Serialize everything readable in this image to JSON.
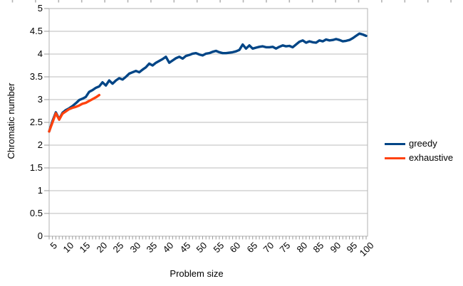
{
  "chart_data": {
    "type": "line",
    "title": "",
    "xlabel": "Problem size",
    "ylabel": "Chromatic number",
    "xlim": [
      5,
      100
    ],
    "ylim": [
      0,
      5
    ],
    "y_tick_step": 0.5,
    "x_minor_tick_step": 1,
    "grid": "horizontal gridlines only",
    "legend_position": "right-middle",
    "y_tick_labels": [
      "0",
      "0.5",
      "1",
      "1.5",
      "2",
      "2.5",
      "3",
      "3.5",
      "4",
      "4.5",
      "5"
    ],
    "x_tick_values": [
      5,
      10,
      15,
      20,
      25,
      30,
      35,
      40,
      45,
      50,
      55,
      60,
      65,
      70,
      75,
      80,
      85,
      90,
      95,
      100
    ],
    "x_tick_labels": [
      "5",
      "10",
      "15",
      "20",
      "25",
      "30",
      "35",
      "40",
      "45",
      "50",
      "55",
      "60",
      "65",
      "70",
      "75",
      "80",
      "85",
      "90",
      "95",
      "100"
    ],
    "series": [
      {
        "name": "greedy",
        "color": "#004586",
        "x_start": 5,
        "x_step": 1,
        "values": [
          2.3,
          2.53,
          2.72,
          2.57,
          2.71,
          2.77,
          2.81,
          2.86,
          2.92,
          2.99,
          3.02,
          3.06,
          3.17,
          3.21,
          3.26,
          3.29,
          3.38,
          3.31,
          3.42,
          3.35,
          3.42,
          3.47,
          3.44,
          3.5,
          3.57,
          3.6,
          3.63,
          3.6,
          3.66,
          3.71,
          3.79,
          3.75,
          3.81,
          3.85,
          3.89,
          3.94,
          3.81,
          3.86,
          3.91,
          3.94,
          3.9,
          3.96,
          3.98,
          4.01,
          4.02,
          3.99,
          3.97,
          4.01,
          4.02,
          4.05,
          4.07,
          4.04,
          4.02,
          4.02,
          4.03,
          4.04,
          4.06,
          4.09,
          4.21,
          4.12,
          4.19,
          4.12,
          4.14,
          4.16,
          4.17,
          4.15,
          4.15,
          4.16,
          4.12,
          4.16,
          4.19,
          4.17,
          4.18,
          4.15,
          4.21,
          4.27,
          4.3,
          4.25,
          4.28,
          4.26,
          4.25,
          4.3,
          4.28,
          4.32,
          4.3,
          4.31,
          4.33,
          4.31,
          4.28,
          4.29,
          4.31,
          4.35,
          4.4,
          4.45,
          4.43,
          4.4
        ]
      },
      {
        "name": "exhaustive",
        "color": "#ff420e",
        "x_start": 5,
        "x_step": 1,
        "values": [
          2.3,
          2.5,
          2.7,
          2.56,
          2.69,
          2.74,
          2.79,
          2.82,
          2.84,
          2.87,
          2.91,
          2.93,
          2.97,
          3.01,
          3.05,
          3.1
        ]
      }
    ]
  },
  "legend": {
    "items": [
      {
        "label": "greedy",
        "color": "#004586"
      },
      {
        "label": "exhaustive",
        "color": "#ff420e"
      }
    ]
  },
  "colors": {
    "background": "#ffffff",
    "plot_border": "#b3b3b3",
    "gridline": "#bbbbbb",
    "axis_line": "#a6a6a6",
    "tick": "#999999",
    "text": "#000000",
    "top_crop_artifact": "#b3b3b3"
  }
}
